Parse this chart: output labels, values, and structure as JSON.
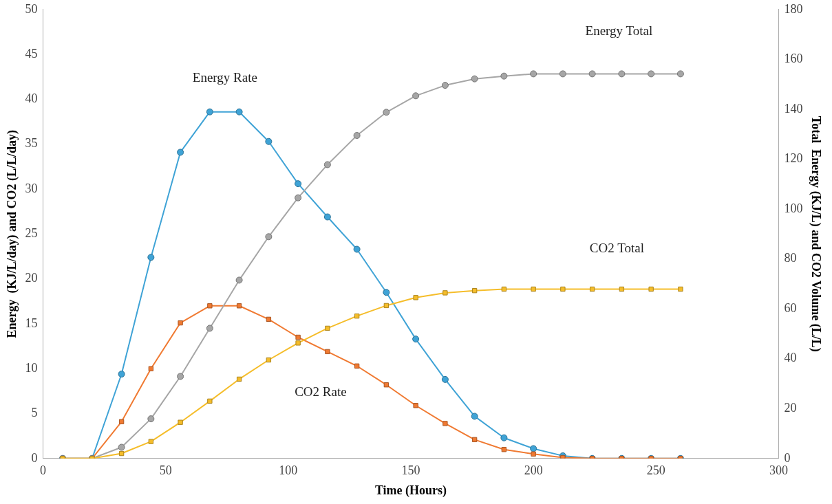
{
  "chart_data": {
    "type": "line",
    "xlabel": "Time (Hours)",
    "ylabel": "Energy  (KJ/L/day) and CO2 (L/L/day)",
    "y2label": "Total  Energy (KJ/L) and CO2 Volume (L/L)",
    "x": [
      8,
      20,
      32,
      44,
      56,
      68,
      80,
      92,
      104,
      116,
      128,
      140,
      152,
      164,
      176,
      188,
      200,
      212,
      224,
      236,
      248,
      260
    ],
    "series": [
      {
        "name": "Energy Rate",
        "color": "#3fa3d6",
        "marker": "circle",
        "values": [
          0,
          0,
          9.4,
          22.4,
          34.1,
          38.6,
          38.6,
          35.3,
          30.6,
          26.9,
          23.3,
          18.5,
          13.3,
          8.8,
          4.7,
          2.3,
          1.1,
          0.3,
          0,
          0,
          0,
          0
        ]
      },
      {
        "name": "CO2 Rate",
        "color": "#f07a32",
        "marker": "square",
        "values": [
          0,
          0,
          4.1,
          10.0,
          15.1,
          17.0,
          17.0,
          15.5,
          13.5,
          11.9,
          10.3,
          8.2,
          5.9,
          3.9,
          2.1,
          1.0,
          0.5,
          0.1,
          0,
          0,
          0,
          0
        ]
      },
      {
        "name": "Energy Total",
        "color": "#a6a6a6",
        "marker": "circle",
        "axis": "y2",
        "values": [
          0,
          0,
          4.5,
          15.9,
          32.9,
          52.2,
          71.5,
          88.9,
          104.5,
          117.8,
          129.5,
          138.8,
          145.4,
          149.6,
          152.2,
          153.3,
          154.2,
          154.2,
          154.2,
          154.2,
          154.2,
          154.2
        ]
      },
      {
        "name": "CO2 Total",
        "color": "#f5bd2a",
        "marker": "square",
        "axis": "y2",
        "values": [
          0,
          0,
          2.0,
          6.8,
          14.5,
          23.0,
          31.8,
          39.5,
          46.3,
          52.2,
          57.1,
          61.3,
          64.5,
          66.4,
          67.3,
          67.9,
          67.9,
          67.9,
          67.9,
          67.9,
          67.9,
          67.9
        ]
      }
    ],
    "xlim": [
      0,
      300
    ],
    "xticks": [
      0,
      50,
      100,
      150,
      200,
      250,
      300
    ],
    "ylim": [
      0,
      50
    ],
    "yticks": [
      0,
      5,
      10,
      15,
      20,
      25,
      30,
      35,
      40,
      45,
      50
    ],
    "y2lim": [
      0,
      180
    ],
    "y2ticks": [
      0,
      20,
      40,
      60,
      80,
      100,
      120,
      140,
      160,
      180
    ],
    "grid": false,
    "legend": false,
    "line_style": "solid"
  }
}
